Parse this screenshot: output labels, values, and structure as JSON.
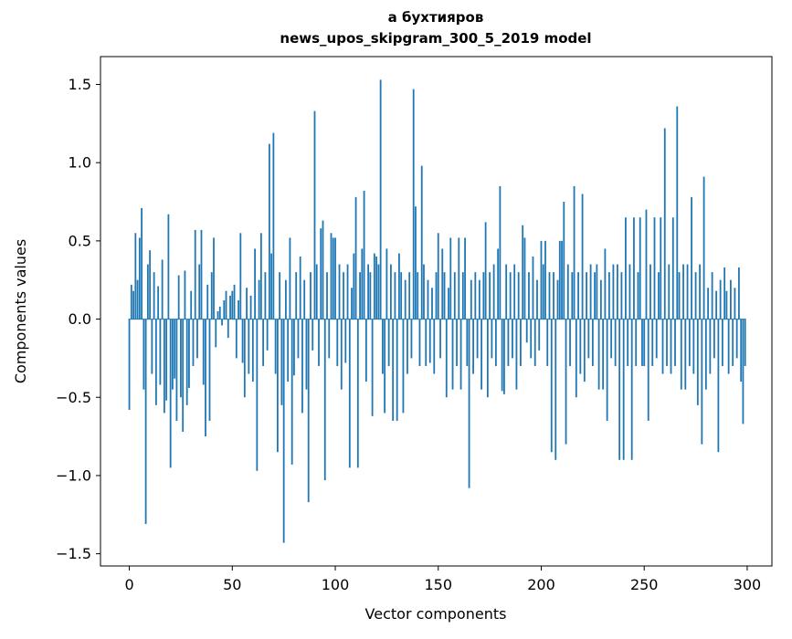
{
  "figure": {
    "background": "#ffffff"
  },
  "chart_data": {
    "type": "bar",
    "title_line1": "а бухтияров",
    "title_line2": "news_upos_skipgram_300_5_2019 model",
    "xlabel": "Vector components",
    "ylabel": "Components values",
    "bar_color": "#1f77b4",
    "xlim": [
      -14,
      312
    ],
    "ylim": [
      -1.578,
      1.678
    ],
    "x_ticks": [
      0,
      50,
      100,
      150,
      200,
      250,
      300
    ],
    "x_tick_labels": [
      "0",
      "50",
      "100",
      "150",
      "200",
      "250",
      "300"
    ],
    "y_ticks": [
      -1.5,
      -1.0,
      -0.5,
      0.0,
      0.5,
      1.0,
      1.5
    ],
    "y_tick_labels": [
      "−1.5",
      "−1.0",
      "−0.5",
      "0.0",
      "0.5",
      "1.0",
      "1.5"
    ],
    "legend": "off",
    "grid": "off",
    "n_components": 300,
    "values": [
      -0.58,
      0.22,
      0.18,
      0.55,
      0.25,
      0.52,
      0.71,
      -0.45,
      -1.31,
      0.35,
      0.44,
      -0.35,
      0.3,
      -0.55,
      0.21,
      -0.42,
      0.38,
      -0.6,
      -0.52,
      0.67,
      -0.95,
      -0.45,
      -0.38,
      -0.65,
      0.28,
      -0.5,
      -0.72,
      0.31,
      -0.55,
      -0.44,
      0.18,
      -0.3,
      0.57,
      -0.25,
      0.35,
      0.57,
      -0.42,
      -0.75,
      0.22,
      -0.65,
      0.3,
      0.52,
      -0.18,
      0.05,
      0.08,
      -0.04,
      0.12,
      0.18,
      -0.12,
      0.15,
      0.18,
      0.22,
      -0.25,
      0.12,
      0.55,
      -0.28,
      -0.5,
      0.2,
      -0.35,
      0.15,
      -0.4,
      0.45,
      -0.97,
      0.25,
      0.55,
      -0.3,
      0.3,
      -0.2,
      1.12,
      0.42,
      1.19,
      -0.35,
      -0.85,
      0.3,
      -0.55,
      -1.43,
      0.25,
      -0.4,
      0.52,
      -0.93,
      -0.36,
      0.3,
      -0.25,
      0.4,
      -0.6,
      0.25,
      -0.45,
      -1.17,
      0.3,
      -0.2,
      1.33,
      0.35,
      -0.3,
      0.58,
      0.63,
      -1.03,
      0.3,
      -0.25,
      0.55,
      0.52,
      0.52,
      -0.3,
      0.35,
      -0.45,
      0.3,
      -0.28,
      0.35,
      -0.95,
      0.2,
      0.42,
      0.78,
      -0.95,
      0.3,
      0.45,
      0.82,
      -0.4,
      0.35,
      0.3,
      -0.62,
      0.42,
      0.4,
      0.35,
      1.53,
      -0.35,
      -0.6,
      0.45,
      -0.3,
      0.35,
      -0.65,
      0.3,
      -0.65,
      0.42,
      0.3,
      -0.6,
      0.25,
      -0.35,
      0.3,
      -0.25,
      1.47,
      0.72,
      0.3,
      -0.3,
      0.98,
      0.35,
      -0.3,
      0.25,
      -0.28,
      0.2,
      -0.35,
      0.3,
      0.55,
      -0.25,
      0.45,
      0.3,
      -0.5,
      0.2,
      0.52,
      -0.45,
      0.3,
      -0.3,
      0.52,
      -0.45,
      0.3,
      0.52,
      -0.3,
      -1.08,
      0.25,
      -0.35,
      0.3,
      -0.25,
      0.25,
      -0.45,
      0.3,
      0.62,
      -0.5,
      0.3,
      -0.25,
      0.35,
      -0.3,
      0.45,
      0.85,
      -0.46,
      -0.48,
      0.35,
      -0.3,
      0.3,
      -0.25,
      0.35,
      -0.45,
      0.3,
      -0.3,
      0.6,
      0.52,
      -0.15,
      0.3,
      -0.25,
      0.4,
      -0.3,
      0.25,
      -0.2,
      0.5,
      0.35,
      0.5,
      -0.3,
      0.3,
      -0.85,
      0.3,
      -0.9,
      0.25,
      0.5,
      0.5,
      0.75,
      -0.8,
      0.35,
      -0.3,
      0.3,
      0.85,
      -0.5,
      0.3,
      -0.35,
      0.8,
      -0.4,
      0.3,
      -0.25,
      0.35,
      -0.3,
      0.3,
      0.35,
      -0.45,
      0.25,
      -0.45,
      0.45,
      -0.65,
      0.3,
      -0.25,
      0.35,
      -0.3,
      0.35,
      -0.9,
      0.3,
      -0.9,
      0.65,
      -0.3,
      0.35,
      -0.9,
      0.65,
      -0.3,
      0.3,
      0.65,
      -0.3,
      -0.3,
      0.7,
      -0.65,
      0.35,
      -0.3,
      0.65,
      -0.25,
      0.3,
      0.65,
      -0.35,
      1.22,
      -0.3,
      0.35,
      -0.35,
      0.65,
      -0.3,
      1.36,
      0.3,
      -0.45,
      0.35,
      -0.45,
      0.35,
      -0.3,
      0.78,
      -0.35,
      0.3,
      -0.55,
      0.35,
      -0.8,
      0.91,
      -0.45,
      0.2,
      -0.35,
      0.3,
      -0.25,
      0.18,
      -0.85,
      0.25,
      -0.3,
      0.33,
      0.18,
      -0.35,
      0.25,
      -0.3,
      0.2,
      -0.25,
      0.33,
      -0.4,
      -0.67,
      -0.3
    ]
  }
}
